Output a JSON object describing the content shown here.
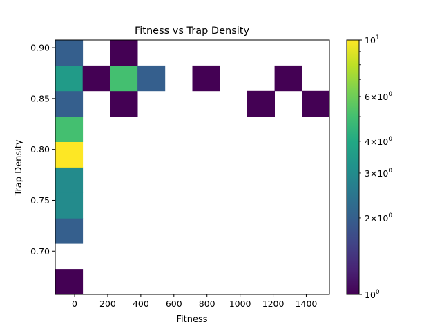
{
  "chart_data": {
    "type": "heatmap",
    "title": "Fitness vs Trap Density",
    "xlabel": "Fitness",
    "ylabel": "Trap Density",
    "xlim": [
      -117,
      1540
    ],
    "ylim": [
      0.6575,
      0.9075
    ],
    "x_ticks": [
      0,
      200,
      400,
      600,
      800,
      1000,
      1200,
      1400
    ],
    "y_ticks": [
      0.7,
      0.75,
      0.8,
      0.85,
      0.9
    ],
    "x_tick_labels": [
      "0",
      "200",
      "400",
      "600",
      "800",
      "1000",
      "1200",
      "1400"
    ],
    "y_tick_labels": [
      "0.70",
      "0.75",
      "0.80",
      "0.85",
      "0.90"
    ],
    "bin_width_x": 165.7,
    "bin_height_y": 0.025,
    "color_scale": "log",
    "colormap": "viridis",
    "colorbar": {
      "vmin": 1,
      "vmax": 10,
      "major_ticks": [
        1,
        10
      ],
      "major_labels": [
        "10^0",
        "10^1"
      ],
      "minor_ticks": [
        2,
        3,
        4,
        6
      ],
      "minor_labels": [
        "2×10^0",
        "3×10^0",
        "4×10^0",
        "6×10^0"
      ]
    },
    "cells": [
      {
        "x": [
          -117,
          48.7
        ],
        "y": [
          0.6575,
          0.6825
        ],
        "count": 1
      },
      {
        "x": [
          -117,
          48.7
        ],
        "y": [
          0.7075,
          0.7325
        ],
        "count": 2
      },
      {
        "x": [
          -117,
          48.7
        ],
        "y": [
          0.7325,
          0.7575
        ],
        "count": 3
      },
      {
        "x": [
          -117,
          48.7
        ],
        "y": [
          0.7575,
          0.7825
        ],
        "count": 3
      },
      {
        "x": [
          -117,
          48.7
        ],
        "y": [
          0.7825,
          0.8075
        ],
        "count": 10
      },
      {
        "x": [
          -117,
          48.7
        ],
        "y": [
          0.8075,
          0.8325
        ],
        "count": 5
      },
      {
        "x": [
          -117,
          48.7
        ],
        "y": [
          0.8325,
          0.8575
        ],
        "count": 2
      },
      {
        "x": [
          -117,
          48.7
        ],
        "y": [
          0.8575,
          0.8825
        ],
        "count": 3.5
      },
      {
        "x": [
          -117,
          48.7
        ],
        "y": [
          0.8825,
          0.9075
        ],
        "count": 2
      },
      {
        "x": [
          48.7,
          214.4
        ],
        "y": [
          0.8575,
          0.8825
        ],
        "count": 1
      },
      {
        "x": [
          214.4,
          380.1
        ],
        "y": [
          0.8325,
          0.8575
        ],
        "count": 1
      },
      {
        "x": [
          214.4,
          380.1
        ],
        "y": [
          0.8575,
          0.8825
        ],
        "count": 5
      },
      {
        "x": [
          214.4,
          380.1
        ],
        "y": [
          0.8825,
          0.9075
        ],
        "count": 1
      },
      {
        "x": [
          380.1,
          545.8
        ],
        "y": [
          0.8575,
          0.8825
        ],
        "count": 2
      },
      {
        "x": [
          711.5,
          877.2
        ],
        "y": [
          0.8575,
          0.8825
        ],
        "count": 1
      },
      {
        "x": [
          1042.9,
          1208.6
        ],
        "y": [
          0.8325,
          0.8575
        ],
        "count": 1
      },
      {
        "x": [
          1208.6,
          1374.3
        ],
        "y": [
          0.8575,
          0.8825
        ],
        "count": 1
      },
      {
        "x": [
          1374.3,
          1540
        ],
        "y": [
          0.8325,
          0.8575
        ],
        "count": 1
      }
    ]
  }
}
